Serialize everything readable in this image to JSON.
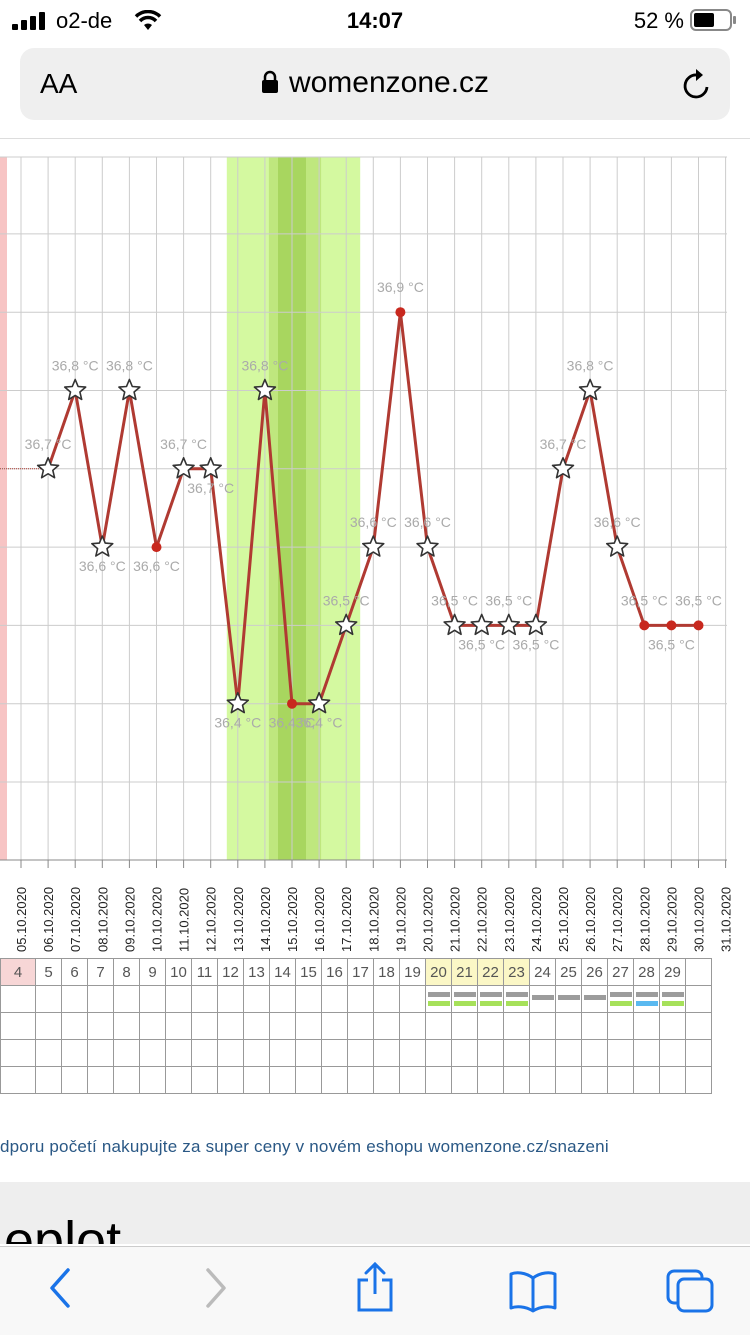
{
  "status_bar": {
    "carrier": "o2-de",
    "time": "14:07",
    "battery": "52 %"
  },
  "browser": {
    "text_size_label": "AA",
    "domain": "womenzone.cz"
  },
  "chart_data": {
    "type": "line",
    "x": [
      "05.10.2020",
      "06.10.2020",
      "07.10.2020",
      "08.10.2020",
      "09.10.2020",
      "10.10.2020",
      "11.10.2020",
      "12.10.2020",
      "13.10.2020",
      "14.10.2020",
      "15.10.2020",
      "16.10.2020",
      "17.10.2020",
      "18.10.2020",
      "19.10.2020",
      "20.10.2020",
      "21.10.2020",
      "22.10.2020",
      "23.10.2020",
      "24.10.2020",
      "25.10.2020",
      "26.10.2020",
      "27.10.2020",
      "28.10.2020",
      "29.10.2020",
      "30.10.2020",
      "31.10.2020"
    ],
    "series": [
      {
        "values": [
          null,
          36.7,
          36.8,
          36.6,
          36.8,
          36.6,
          36.7,
          36.7,
          36.4,
          36.8,
          36.4,
          36.4,
          36.5,
          36.6,
          36.9,
          36.6,
          36.5,
          36.5,
          36.5,
          36.5,
          36.7,
          36.8,
          36.6,
          36.5,
          36.5,
          36.5,
          null
        ],
        "labels": [
          null,
          "36,7 °C",
          "36,8 °C",
          "36,6 °C",
          "36,8 °C",
          "36,6 °C",
          "36,7 °C",
          "36,7 °C",
          "36,4 °C",
          "36,8 °C",
          "36,4 °C",
          "36,4 °C",
          "36,5 °C",
          "36,6 °C",
          "36,9 °C",
          "36,6 °C",
          "36,5 °C",
          "36,5 °C",
          "36,5 °C",
          "36,5 °C",
          "36,7 °C",
          "36,8 °C",
          "36,6 °C",
          "36,5 °C",
          "36,5 °C",
          "36,5 °C",
          null
        ],
        "markers": [
          null,
          "star",
          "star",
          "star",
          "star",
          "dot",
          "star",
          "star",
          "star",
          "star",
          "dot",
          "star",
          "star",
          "star",
          "dot",
          "star",
          "star",
          "star",
          "star",
          "star",
          "star",
          "star",
          "star",
          "dot",
          "dot",
          "dot",
          null
        ]
      }
    ],
    "ylim": [
      36.2,
      37.1
    ],
    "fertile_window": [
      "13.10.2020",
      "17.10.2020"
    ],
    "peak_fertility": [
      "15.10.2020",
      "15.10.2020"
    ],
    "colors": {
      "line": "#b03a32",
      "dot": "#c8281e",
      "fertile": "#d4f9a0",
      "fertile_mid": "#bfe77e",
      "fertile_peak": "#a8d65f",
      "grid": "#cccccc",
      "label": "#aaaaaa"
    }
  },
  "cycle_days": {
    "numbers": [
      "4",
      "5",
      "6",
      "7",
      "8",
      "9",
      "10",
      "11",
      "12",
      "13",
      "14",
      "15",
      "16",
      "17",
      "18",
      "19",
      "20",
      "21",
      "22",
      "23",
      "24",
      "25",
      "26",
      "27",
      "28",
      "29"
    ],
    "highlighted": [
      "20",
      "21",
      "22",
      "23"
    ],
    "menstruation": [
      "4"
    ],
    "gray_markers": [
      "20",
      "21",
      "22",
      "23",
      "24",
      "25",
      "26",
      "27",
      "28",
      "29"
    ],
    "green_markers": [
      "20",
      "21",
      "22",
      "23",
      "27",
      "29"
    ],
    "blue_markers": [
      "28"
    ]
  },
  "promo_text": "dporu početí nakupujte za super ceny v novém eshopu womenzone.cz/snazeni",
  "section_heading": "eplot",
  "toolbar": {
    "icons": [
      "back-icon",
      "forward-icon",
      "share-icon",
      "bookmarks-icon",
      "tabs-icon"
    ]
  }
}
